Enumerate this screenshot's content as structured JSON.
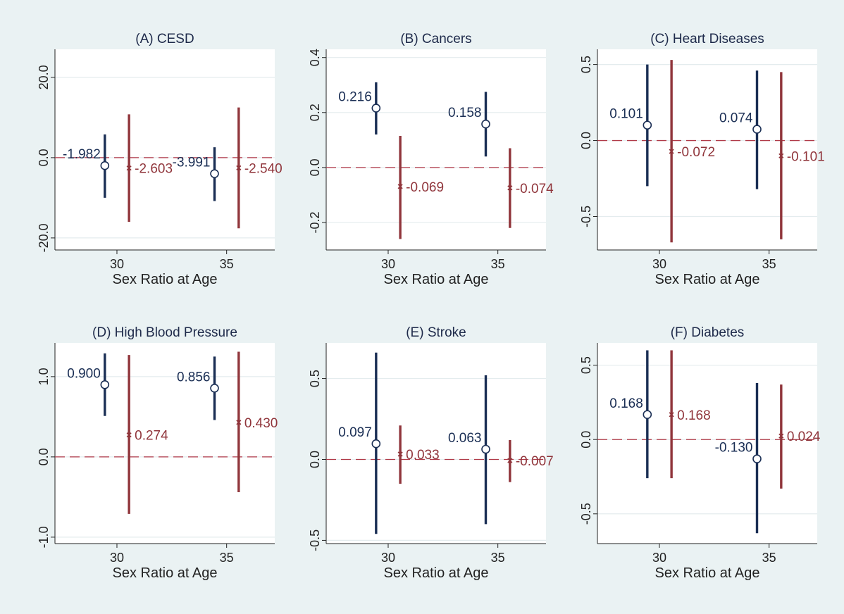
{
  "colors": {
    "background": "#eaf2f3",
    "plot": "#ffffff",
    "grid": "#e4ecee",
    "series_a": "#1a2e54",
    "series_b": "#90353b",
    "zero_line": "#b03a48"
  },
  "chart_data": [
    {
      "type": "scatter",
      "title": "(A) CESD",
      "xlabel": "Sex Ratio at Age",
      "x_categories": [
        "30",
        "35"
      ],
      "ylim": [
        -23,
        27
      ],
      "yticks": [
        {
          "v": -20,
          "label": "-20.0"
        },
        {
          "v": 0,
          "label": "0.0"
        },
        {
          "v": 20,
          "label": "20.0"
        }
      ],
      "series": [
        {
          "values": [
            -1.982,
            -3.991
          ],
          "labels": [
            "-1.982",
            "-3.991"
          ],
          "lower": [
            -10,
            -10.8
          ],
          "upper": [
            5.8,
            2.6
          ],
          "marker": "circle"
        },
        {
          "values": [
            -2.603,
            -2.54
          ],
          "labels": [
            "-2.603",
            "-2.540"
          ],
          "lower": [
            -16,
            -17.6
          ],
          "upper": [
            10.8,
            12.5
          ],
          "marker": "x"
        }
      ]
    },
    {
      "type": "scatter",
      "title": "(B) Cancers",
      "xlabel": "Sex Ratio at Age",
      "x_categories": [
        "30",
        "35"
      ],
      "ylim": [
        -0.3,
        0.43
      ],
      "yticks": [
        {
          "v": -0.2,
          "label": "-0.2"
        },
        {
          "v": 0,
          "label": "0.0"
        },
        {
          "v": 0.2,
          "label": "0.2"
        },
        {
          "v": 0.4,
          "label": "0.4"
        }
      ],
      "series": [
        {
          "values": [
            0.216,
            0.158
          ],
          "labels": [
            "0.216",
            "0.158"
          ],
          "lower": [
            0.12,
            0.04
          ],
          "upper": [
            0.31,
            0.275
          ],
          "marker": "circle"
        },
        {
          "values": [
            -0.069,
            -0.074
          ],
          "labels": [
            "-0.069",
            "-0.074"
          ],
          "lower": [
            -0.26,
            -0.22
          ],
          "upper": [
            0.115,
            0.07
          ],
          "marker": "x"
        }
      ]
    },
    {
      "type": "scatter",
      "title": "(C) Heart Diseases",
      "xlabel": "Sex Ratio at Age",
      "x_categories": [
        "30",
        "35"
      ],
      "ylim": [
        -0.72,
        0.6
      ],
      "yticks": [
        {
          "v": -0.5,
          "label": "-0.5"
        },
        {
          "v": 0,
          "label": "0.0"
        },
        {
          "v": 0.5,
          "label": "0.5"
        }
      ],
      "series": [
        {
          "values": [
            0.101,
            0.074
          ],
          "labels": [
            "0.101",
            "0.074"
          ],
          "lower": [
            -0.3,
            -0.32
          ],
          "upper": [
            0.5,
            0.46
          ],
          "marker": "circle"
        },
        {
          "values": [
            -0.072,
            -0.101
          ],
          "labels": [
            "-0.072",
            "-0.101"
          ],
          "lower": [
            -0.67,
            -0.65
          ],
          "upper": [
            0.53,
            0.45
          ],
          "marker": "x"
        }
      ]
    },
    {
      "type": "scatter",
      "title": "(D) High Blood Pressure",
      "xlabel": "Sex Ratio at Age",
      "x_categories": [
        "30",
        "35"
      ],
      "ylim": [
        -1.08,
        1.42
      ],
      "yticks": [
        {
          "v": -1,
          "label": "-1.0"
        },
        {
          "v": 0,
          "label": "0.0"
        },
        {
          "v": 1,
          "label": "1.0"
        }
      ],
      "series": [
        {
          "values": [
            0.9,
            0.856
          ],
          "labels": [
            "0.900",
            "0.856"
          ],
          "lower": [
            0.51,
            0.46
          ],
          "upper": [
            1.29,
            1.25
          ],
          "marker": "circle"
        },
        {
          "values": [
            0.274,
            0.43
          ],
          "labels": [
            "0.274",
            "0.430"
          ],
          "lower": [
            -0.71,
            -0.44
          ],
          "upper": [
            1.27,
            1.31
          ],
          "marker": "x"
        }
      ]
    },
    {
      "type": "scatter",
      "title": "(E) Stroke",
      "xlabel": "Sex Ratio at Age",
      "x_categories": [
        "30",
        "35"
      ],
      "ylim": [
        -0.52,
        0.72
      ],
      "yticks": [
        {
          "v": -0.5,
          "label": "-0.5"
        },
        {
          "v": 0,
          "label": "0.0"
        },
        {
          "v": 0.5,
          "label": "0.5"
        }
      ],
      "series": [
        {
          "values": [
            0.097,
            0.063
          ],
          "labels": [
            "0.097",
            "0.063"
          ],
          "lower": [
            -0.46,
            -0.4
          ],
          "upper": [
            0.66,
            0.52
          ],
          "marker": "circle"
        },
        {
          "values": [
            0.033,
            -0.007
          ],
          "labels": [
            "0.033",
            "-0.007"
          ],
          "lower": [
            -0.15,
            -0.14
          ],
          "upper": [
            0.21,
            0.12
          ],
          "marker": "x"
        }
      ]
    },
    {
      "type": "scatter",
      "title": "(F) Diabetes",
      "xlabel": "Sex Ratio at Age",
      "x_categories": [
        "30",
        "35"
      ],
      "ylim": [
        -0.7,
        0.65
      ],
      "yticks": [
        {
          "v": -0.5,
          "label": "-0.5"
        },
        {
          "v": 0,
          "label": "0.0"
        },
        {
          "v": 0.5,
          "label": "0.5"
        }
      ],
      "series": [
        {
          "values": [
            0.168,
            -0.13
          ],
          "labels": [
            "0.168",
            "-0.130"
          ],
          "lower": [
            -0.26,
            -0.63
          ],
          "upper": [
            0.6,
            0.38
          ],
          "marker": "circle"
        },
        {
          "values": [
            0.168,
            0.024
          ],
          "labels": [
            "0.168",
            "0.024"
          ],
          "lower": [
            -0.26,
            -0.33
          ],
          "upper": [
            0.6,
            0.37
          ],
          "marker": "x"
        }
      ]
    }
  ]
}
